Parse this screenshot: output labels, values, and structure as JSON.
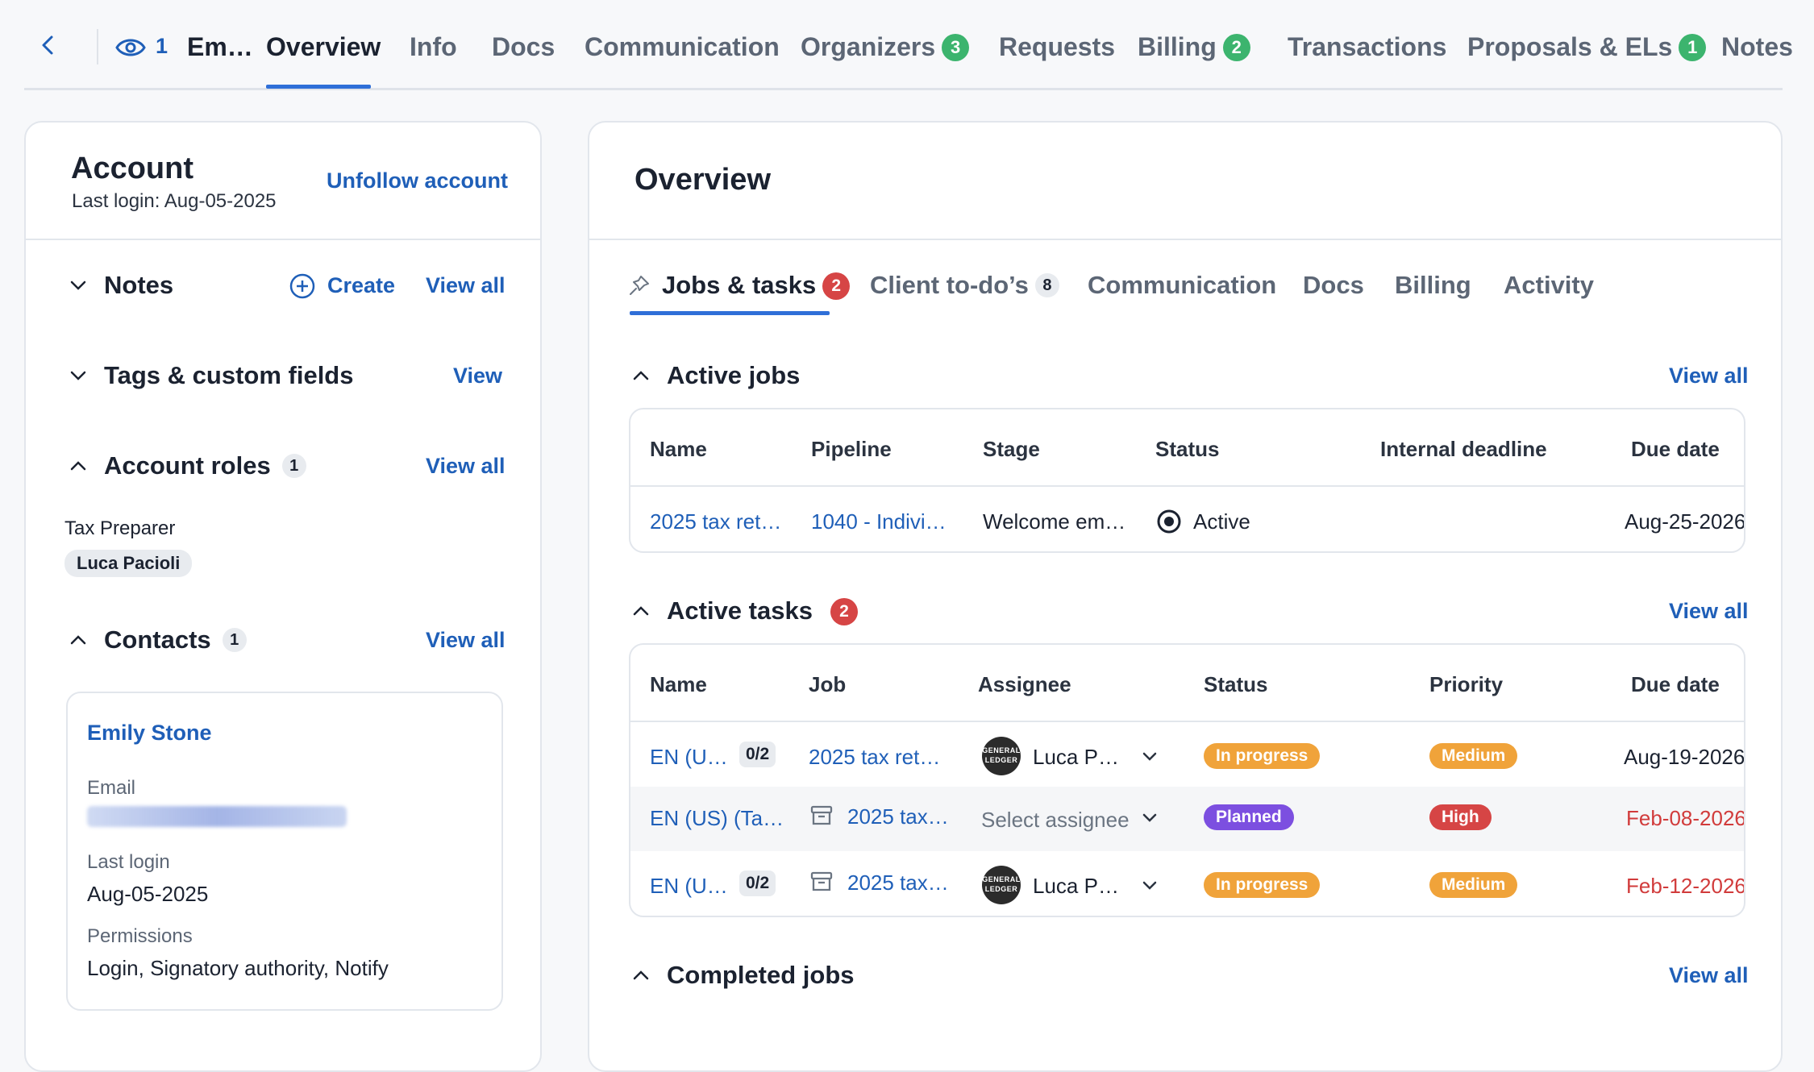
{
  "topbar": {
    "followers": "1",
    "account_name": "Em…",
    "tabs": [
      {
        "label": "Overview"
      },
      {
        "label": "Info"
      },
      {
        "label": "Docs"
      },
      {
        "label": "Communication"
      },
      {
        "label": "Organizers",
        "badge": "3"
      },
      {
        "label": "Requests"
      },
      {
        "label": "Billing",
        "badge": "2"
      },
      {
        "label": "Transactions"
      },
      {
        "label": "Proposals & ELs",
        "badge": "1"
      },
      {
        "label": "Notes"
      }
    ]
  },
  "account": {
    "title": "Account",
    "last_login": "Last login: Aug-05-2025",
    "unfollow": "Unfollow account",
    "notes": {
      "title": "Notes",
      "create": "Create",
      "view_all": "View all"
    },
    "tags": {
      "title": "Tags & custom fields",
      "view": "View"
    },
    "roles": {
      "title": "Account roles",
      "count": "1",
      "view_all": "View all",
      "role": "Tax Preparer",
      "person": "Luca Pacioli"
    },
    "contacts": {
      "title": "Contacts",
      "count": "1",
      "view_all": "View all",
      "name": "Emily Stone",
      "email_label": "Email",
      "last_login_label": "Last login",
      "last_login": "Aug-05-2025",
      "permissions_label": "Permissions",
      "permissions": "Login, Signatory authority, Notify"
    }
  },
  "overview": {
    "title": "Overview",
    "tabs": [
      {
        "label": "Jobs & tasks",
        "badge": "2"
      },
      {
        "label": "Client to-do’s",
        "badge": "8"
      },
      {
        "label": "Communication"
      },
      {
        "label": "Docs"
      },
      {
        "label": "Billing"
      },
      {
        "label": "Activity"
      }
    ],
    "active_jobs": {
      "title": "Active jobs",
      "view_all": "View all",
      "headers": [
        "Name",
        "Pipeline",
        "Stage",
        "Status",
        "Internal deadline",
        "Due date"
      ],
      "rows": [
        {
          "name": "2025 tax ret…",
          "pipeline": "1040 - Indivi…",
          "stage": "Welcome em…",
          "status": "Active",
          "internal_deadline": "",
          "due": "Aug-25-2026"
        }
      ]
    },
    "active_tasks": {
      "title": "Active tasks",
      "badge": "2",
      "view_all": "View all",
      "headers": [
        "Name",
        "Job",
        "Assignee",
        "Status",
        "Priority",
        "Due date"
      ],
      "rows": [
        {
          "name": "EN (U…",
          "count": "0/2",
          "job": "2025 tax ret…",
          "assignee": "Luca P…",
          "status": "In progress",
          "priority": "Medium",
          "due": "Aug-19-2026"
        },
        {
          "name": "EN (US) (Ta…",
          "count": "",
          "job": "2025 tax…",
          "assignee": "Select assignee",
          "status": "Planned",
          "priority": "High",
          "due": "Feb-08-2026"
        },
        {
          "name": "EN (U…",
          "count": "0/2",
          "job": "2025 tax…",
          "assignee": "Luca P…",
          "status": "In progress",
          "priority": "Medium",
          "due": "Feb-12-2026"
        }
      ],
      "avatar_text": "GENERAL LEDGER"
    },
    "completed_jobs": {
      "title": "Completed jobs",
      "view_all": "View all"
    }
  },
  "colors": {
    "accent": "#2f6fd8",
    "link": "#1f5fb8",
    "success": "#3cb46e",
    "danger": "#d64545",
    "warning": "#f0a33a",
    "planned": "#7c4fe0"
  }
}
